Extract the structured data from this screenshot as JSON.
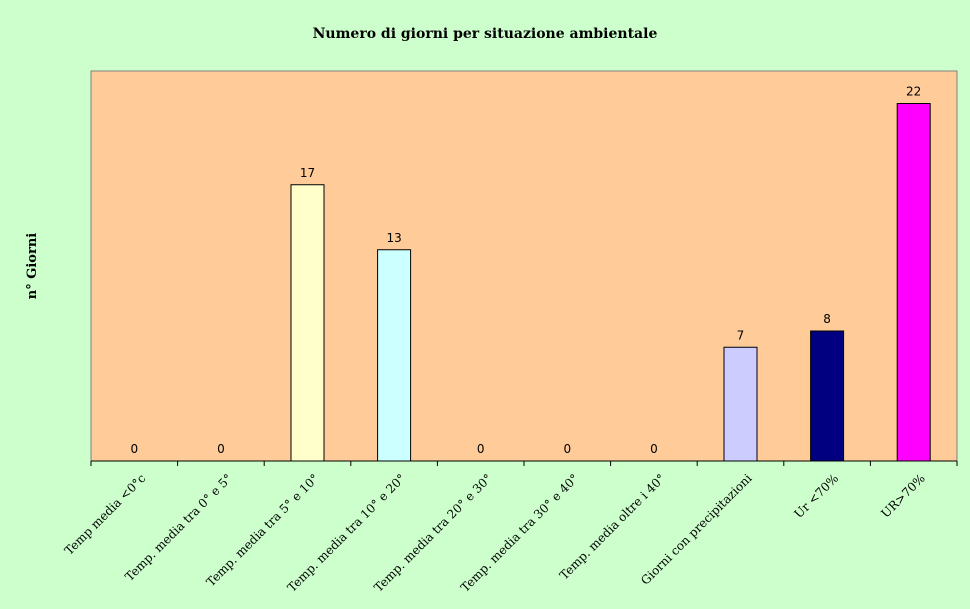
{
  "chart_data": {
    "type": "bar",
    "title": "Numero di giorni per situazione ambientale",
    "xlabel": "",
    "ylabel": "n° Giorni",
    "categories": [
      "Temp media <0°c",
      "Temp. media tra 0° e 5°",
      "Temp. media tra 5° e 10°",
      "Temp. media tra 10° e 20°",
      "Temp. media tra 20° e 30°",
      "Temp. media tra 30° e 40°",
      "Temp. media oltre i 40°",
      "Giorni con precipitazioni",
      "Ur <70%",
      "UR>70%"
    ],
    "values": [
      0,
      0,
      17,
      13,
      0,
      0,
      0,
      7,
      8,
      22
    ],
    "bar_colors": [
      "#ffffcc",
      "#ffffcc",
      "#ffffcc",
      "#ccffff",
      "#ccffff",
      "#ccffff",
      "#ccffff",
      "#ccccff",
      "#000080",
      "#ff00ff"
    ],
    "ylim": [
      0,
      24
    ],
    "grid": false,
    "legend": "none",
    "plot_background": "#ffcc99",
    "page_background": "#ccffcc"
  }
}
